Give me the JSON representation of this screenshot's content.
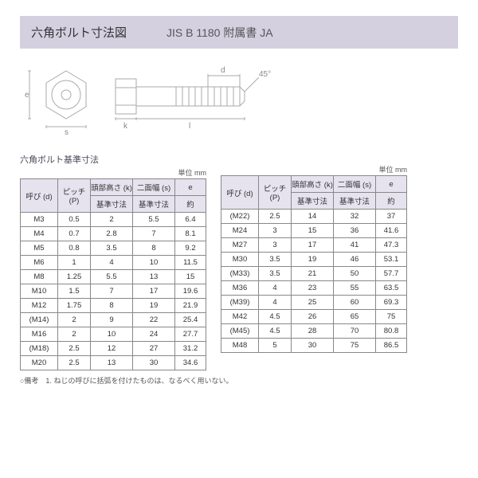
{
  "header": {
    "title": "六角ボルト寸法図",
    "standard": "JIS B 1180 附属書 JA"
  },
  "diagram": {
    "labels": {
      "e": "e",
      "s": "s",
      "k": "k",
      "l": "l",
      "d": "d",
      "chamfer": "45°"
    },
    "stroke_color": "#aaaaaa",
    "text_color": "#888888"
  },
  "tables": {
    "caption": "六角ボルト基準寸法",
    "unit_label": "単位 mm",
    "header": {
      "main": [
        "呼び (d)",
        "ピッチ\n(P)",
        "頭部高さ (k)",
        "二面幅 (s)",
        "e"
      ],
      "sub": [
        "基準寸法",
        "基準寸法",
        "約"
      ]
    },
    "left_rows": [
      [
        "M3",
        "0.5",
        "2",
        "5.5",
        "6.4"
      ],
      [
        "M4",
        "0.7",
        "2.8",
        "7",
        "8.1"
      ],
      [
        "M5",
        "0.8",
        "3.5",
        "8",
        "9.2"
      ],
      [
        "M6",
        "1",
        "4",
        "10",
        "11.5"
      ],
      [
        "M8",
        "1.25",
        "5.5",
        "13",
        "15"
      ],
      [
        "M10",
        "1.5",
        "7",
        "17",
        "19.6"
      ],
      [
        "M12",
        "1.75",
        "8",
        "19",
        "21.9"
      ],
      [
        "(M14)",
        "2",
        "9",
        "22",
        "25.4"
      ],
      [
        "M16",
        "2",
        "10",
        "24",
        "27.7"
      ],
      [
        "(M18)",
        "2.5",
        "12",
        "27",
        "31.2"
      ],
      [
        "M20",
        "2.5",
        "13",
        "30",
        "34.6"
      ]
    ],
    "right_rows": [
      [
        "(M22)",
        "2.5",
        "14",
        "32",
        "37"
      ],
      [
        "M24",
        "3",
        "15",
        "36",
        "41.6"
      ],
      [
        "M27",
        "3",
        "17",
        "41",
        "47.3"
      ],
      [
        "M30",
        "3.5",
        "19",
        "46",
        "53.1"
      ],
      [
        "(M33)",
        "3.5",
        "21",
        "50",
        "57.7"
      ],
      [
        "M36",
        "4",
        "23",
        "55",
        "63.5"
      ],
      [
        "(M39)",
        "4",
        "25",
        "60",
        "69.3"
      ],
      [
        "M42",
        "4.5",
        "26",
        "65",
        "75"
      ],
      [
        "(M45)",
        "4.5",
        "28",
        "70",
        "80.8"
      ],
      [
        "M48",
        "5",
        "30",
        "75",
        "86.5"
      ]
    ]
  },
  "footnote": "○備考　1. ねじの呼びに括弧を付けたものは、なるべく用いない。",
  "style": {
    "band_bg": "#d4d0e0",
    "table_header_bg": "#e6e3ef",
    "border_color": "#888888"
  }
}
